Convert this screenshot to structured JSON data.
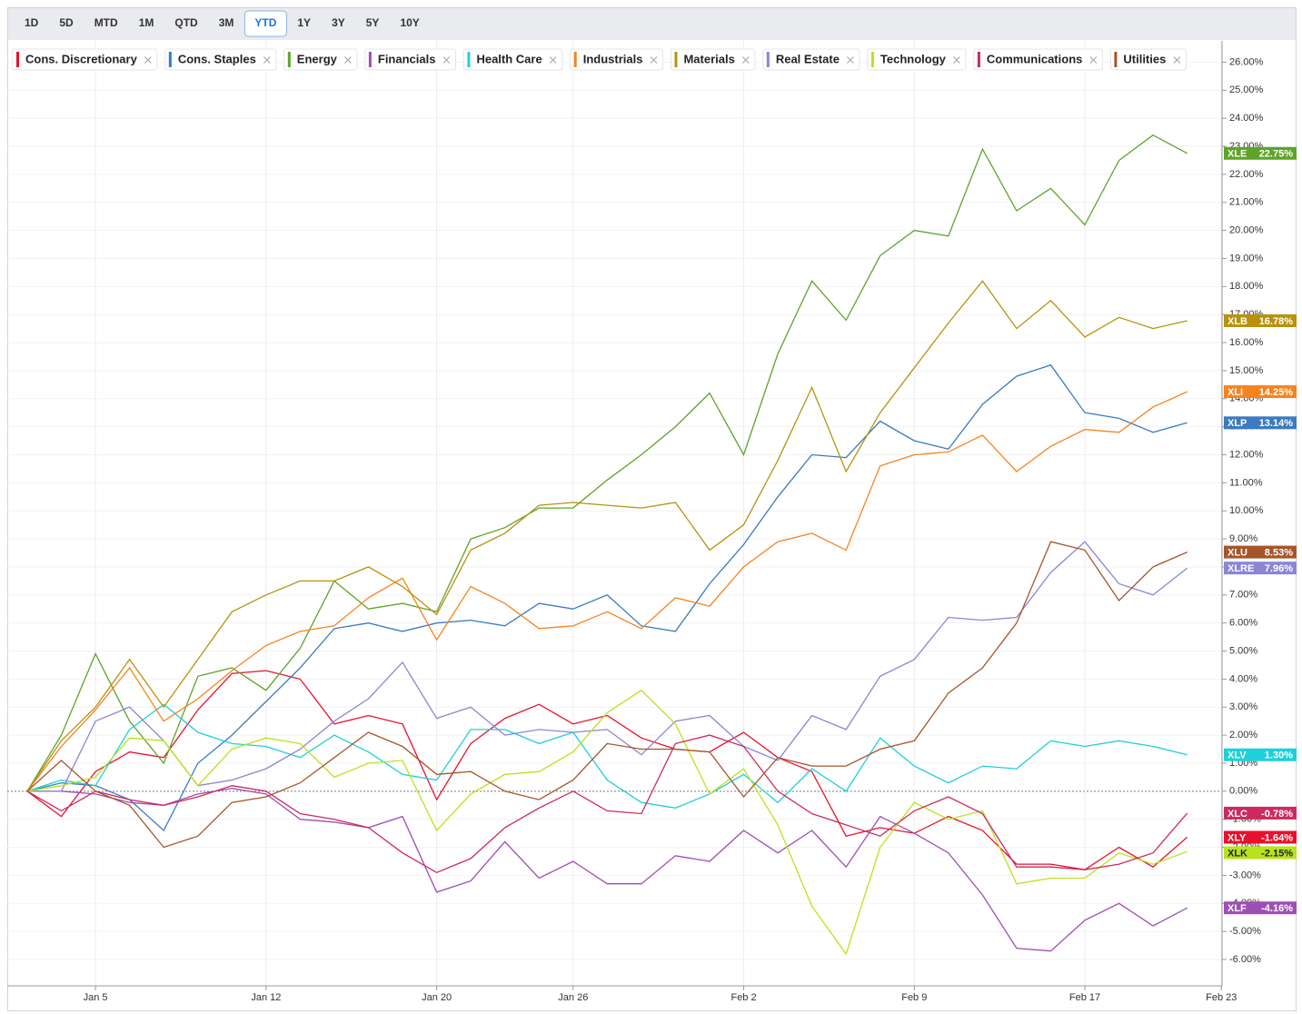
{
  "toolbar": {
    "buttons": [
      "1D",
      "5D",
      "MTD",
      "1M",
      "QTD",
      "3M",
      "YTD",
      "1Y",
      "3Y",
      "5Y",
      "10Y"
    ],
    "selected": "YTD"
  },
  "chart_data": {
    "type": "line",
    "categories": [
      null,
      null,
      "Jan 5",
      null,
      null,
      null,
      null,
      "Jan 12",
      null,
      null,
      null,
      null,
      "Jan 20",
      null,
      null,
      null,
      "Jan 26",
      null,
      null,
      null,
      null,
      "Feb 2",
      null,
      null,
      null,
      null,
      "Feb 9",
      null,
      null,
      null,
      null,
      "Feb 17",
      null,
      null,
      null,
      "Feb 23"
    ],
    "ylim": [
      -6.94,
      26.76
    ],
    "yticks": [
      {
        "value": 26,
        "label": "26.00%"
      },
      {
        "value": 25,
        "label": "25.00%"
      },
      {
        "value": 24,
        "label": "24.00%"
      },
      {
        "value": 23,
        "label": "23.00%"
      },
      {
        "value": 22,
        "label": "22.00%"
      },
      {
        "value": 21,
        "label": "21.00%"
      },
      {
        "value": 20,
        "label": "20.00%"
      },
      {
        "value": 19,
        "label": "19.00%"
      },
      {
        "value": 18,
        "label": "18.00%"
      },
      {
        "value": 17,
        "label": "17.00%"
      },
      {
        "value": 16,
        "label": "16.00%"
      },
      {
        "value": 15,
        "label": "15.00%"
      },
      {
        "value": 14,
        "label": "14.00%"
      },
      {
        "value": 13,
        "label": "13.00%"
      },
      {
        "value": 12,
        "label": "12.00%"
      },
      {
        "value": 11,
        "label": "11.00%"
      },
      {
        "value": 10,
        "label": "10.00%"
      },
      {
        "value": 9,
        "label": "9.00%"
      },
      {
        "value": 8,
        "label": "8.00%"
      },
      {
        "value": 7,
        "label": "7.00%"
      },
      {
        "value": 6,
        "label": "6.00%"
      },
      {
        "value": 5,
        "label": "5.00%"
      },
      {
        "value": 4,
        "label": "4.00%"
      },
      {
        "value": 3,
        "label": "3.00%"
      },
      {
        "value": 2,
        "label": "2.00%"
      },
      {
        "value": 1,
        "label": "1.00%"
      },
      {
        "value": 0,
        "label": "0.00%"
      },
      {
        "value": -1,
        "label": "-1.00%"
      },
      {
        "value": -2,
        "label": "-2.00%"
      },
      {
        "value": -3,
        "label": "-3.00%"
      },
      {
        "value": -4,
        "label": "-4.00%"
      },
      {
        "value": -5,
        "label": "-5.00%"
      },
      {
        "value": -6,
        "label": "-6.00%"
      }
    ],
    "grid": true,
    "series": [
      {
        "name": "Cons. Discretionary",
        "ticker": "XLY",
        "color": "#e8112d",
        "end_label": "-1.64%",
        "values": [
          0,
          -0.9,
          0.7,
          1.4,
          1.2,
          2.9,
          4.2,
          4.3,
          4.0,
          2.4,
          2.7,
          2.4,
          -0.3,
          1.7,
          2.6,
          3.1,
          2.4,
          2.7,
          1.9,
          1.5,
          1.4,
          2.1,
          1.2,
          0.7,
          -1.6,
          -1.3,
          -1.5,
          -0.9,
          -1.4,
          -2.6,
          -2.6,
          -2.8,
          -2.0,
          -2.7,
          -1.64,
          null
        ]
      },
      {
        "name": "Cons. Staples",
        "ticker": "XLP",
        "color": "#3b7bbf",
        "end_label": "13.14%",
        "values": [
          0,
          0.3,
          0.2,
          -0.3,
          -1.4,
          1.0,
          2.0,
          3.2,
          4.4,
          5.8,
          6.0,
          5.7,
          6.0,
          6.1,
          5.9,
          6.7,
          6.5,
          7.0,
          5.9,
          5.7,
          7.4,
          8.8,
          10.5,
          12.0,
          11.9,
          13.2,
          12.5,
          12.2,
          13.8,
          14.8,
          15.2,
          13.5,
          13.3,
          12.8,
          13.14,
          null
        ]
      },
      {
        "name": "Energy",
        "ticker": "XLE",
        "color": "#5ea32a",
        "end_label": "22.75%",
        "values": [
          0,
          2.0,
          4.9,
          2.5,
          1.0,
          4.1,
          4.4,
          3.6,
          5.1,
          7.5,
          6.5,
          6.7,
          6.4,
          9.0,
          9.4,
          10.1,
          10.1,
          11.1,
          12.0,
          13.0,
          14.2,
          12.0,
          15.6,
          18.2,
          16.8,
          19.1,
          20.0,
          19.8,
          22.9,
          20.7,
          21.5,
          20.2,
          22.5,
          23.4,
          22.75,
          null
        ]
      },
      {
        "name": "Financials",
        "ticker": "XLF",
        "color": "#9e4fb5",
        "end_label": "-4.16%",
        "values": [
          0,
          0.0,
          -0.1,
          -0.4,
          -0.5,
          -0.1,
          0.1,
          -0.1,
          -1.0,
          -1.1,
          -1.3,
          -0.9,
          -3.6,
          -3.2,
          -1.8,
          -3.1,
          -2.5,
          -3.3,
          -3.3,
          -2.3,
          -2.5,
          -1.4,
          -2.2,
          -1.4,
          -2.7,
          -0.9,
          -1.5,
          -2.2,
          -3.7,
          -5.6,
          -5.7,
          -4.6,
          -4.0,
          -4.8,
          -4.16,
          null
        ]
      },
      {
        "name": "Health Care",
        "ticker": "XLV",
        "color": "#1fcfd9",
        "end_label": "1.30%",
        "values": [
          0,
          0.4,
          0.2,
          2.2,
          3.1,
          2.1,
          1.7,
          1.6,
          1.2,
          2.0,
          1.4,
          0.6,
          0.4,
          2.2,
          2.2,
          1.7,
          2.1,
          0.4,
          -0.4,
          -0.6,
          -0.1,
          0.6,
          -0.4,
          0.8,
          0.0,
          1.9,
          0.9,
          0.3,
          0.9,
          0.8,
          1.8,
          1.6,
          1.8,
          1.6,
          1.3,
          null
        ]
      },
      {
        "name": "Industrials",
        "ticker": "XLI",
        "color": "#f5841f",
        "end_label": "14.25%",
        "values": [
          0,
          1.6,
          2.9,
          4.4,
          2.5,
          3.3,
          4.3,
          5.2,
          5.7,
          5.9,
          6.9,
          7.6,
          5.4,
          7.3,
          6.7,
          5.8,
          5.9,
          6.4,
          5.8,
          6.9,
          6.6,
          8.0,
          8.9,
          9.2,
          8.6,
          11.6,
          12.0,
          12.1,
          12.7,
          11.4,
          12.3,
          12.9,
          12.8,
          13.7,
          14.25,
          null
        ]
      },
      {
        "name": "Materials",
        "ticker": "XLB",
        "color": "#b8920c",
        "end_label": "16.78%",
        "values": [
          0,
          1.8,
          3.0,
          4.7,
          3.0,
          4.7,
          6.4,
          7.0,
          7.5,
          7.5,
          8.0,
          7.3,
          6.3,
          8.6,
          9.2,
          10.2,
          10.3,
          10.2,
          10.1,
          10.3,
          8.6,
          9.5,
          11.8,
          14.4,
          11.4,
          13.5,
          15.1,
          16.7,
          18.2,
          16.5,
          17.5,
          16.2,
          16.9,
          16.5,
          16.78,
          null
        ]
      },
      {
        "name": "Real Estate",
        "ticker": "XLRE",
        "color": "#8a86d4",
        "end_label": "7.96%",
        "values": [
          0,
          0.0,
          2.5,
          3.0,
          1.8,
          0.2,
          0.4,
          0.8,
          1.5,
          2.5,
          3.3,
          4.6,
          2.6,
          3.0,
          2.0,
          2.2,
          2.1,
          2.2,
          1.3,
          2.5,
          2.7,
          1.6,
          1.1,
          2.7,
          2.2,
          4.1,
          4.7,
          6.2,
          6.1,
          6.2,
          7.8,
          8.9,
          7.4,
          7.0,
          7.96,
          null
        ]
      },
      {
        "name": "Technology",
        "ticker": "XLK",
        "color": "#b9e31c",
        "end_label": "-2.15%",
        "values": [
          0,
          0.2,
          0.5,
          1.9,
          1.8,
          0.2,
          1.5,
          1.9,
          1.7,
          0.5,
          1.0,
          1.1,
          -1.4,
          -0.1,
          0.6,
          0.7,
          1.4,
          2.8,
          3.6,
          2.4,
          -0.1,
          0.8,
          -1.2,
          -4.1,
          -5.8,
          -2.0,
          -0.4,
          -1.0,
          -0.7,
          -3.3,
          -3.1,
          -3.1,
          -2.2,
          -2.6,
          -2.15,
          null
        ]
      },
      {
        "name": "Communications",
        "ticker": "XLC",
        "color": "#cc2a5f",
        "end_label": "-0.78%",
        "values": [
          0,
          -0.7,
          0.0,
          -0.3,
          -0.5,
          -0.2,
          0.2,
          0.0,
          -0.8,
          -1.0,
          -1.3,
          -2.2,
          -2.9,
          -2.4,
          -1.3,
          -0.6,
          0.0,
          -0.7,
          -0.8,
          1.7,
          2.0,
          1.6,
          0.0,
          -0.8,
          -1.2,
          -1.6,
          -0.7,
          -0.2,
          -0.8,
          -2.7,
          -2.7,
          -2.8,
          -2.6,
          -2.2,
          -0.78,
          null
        ]
      },
      {
        "name": "Utilities",
        "ticker": "XLU",
        "color": "#a6552a",
        "end_label": "8.53%",
        "values": [
          0,
          1.1,
          0.0,
          -0.5,
          -2.0,
          -1.6,
          -0.4,
          -0.2,
          0.3,
          1.2,
          2.1,
          1.6,
          0.6,
          0.7,
          0.0,
          -0.3,
          0.4,
          1.7,
          1.5,
          1.5,
          1.4,
          -0.2,
          1.2,
          0.9,
          0.9,
          1.5,
          1.8,
          3.5,
          4.4,
          6.0,
          8.9,
          8.6,
          6.8,
          8.0,
          8.53,
          null
        ]
      }
    ]
  }
}
